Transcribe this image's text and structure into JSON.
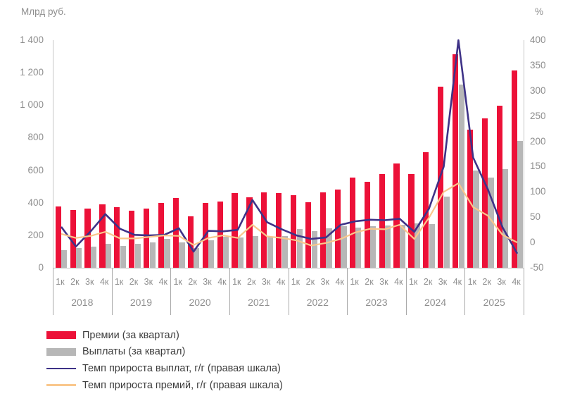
{
  "chart_data": {
    "type": "bar+line combo",
    "title": "",
    "years": [
      "2018",
      "2019",
      "2020",
      "2021",
      "2022",
      "2023",
      "2024",
      "2025"
    ],
    "quarter_labels": [
      "1к",
      "2к",
      "3к",
      "4к"
    ],
    "left_axis": {
      "label": "Млрд руб.",
      "min": 0,
      "max": 1400,
      "step": 200,
      "tick_labels": [
        "0",
        "200",
        "400",
        "600",
        "800",
        "1 000",
        "1 200",
        "1 400"
      ]
    },
    "right_axis": {
      "label": "%",
      "min": -50,
      "max": 400,
      "step": 50,
      "tick_labels": [
        "-50",
        "0",
        "50",
        "100",
        "150",
        "200",
        "250",
        "300",
        "350",
        "400"
      ]
    },
    "series": [
      {
        "name": "Премии (за квартал)",
        "type": "bar",
        "axis": "left",
        "color": "#ec1138",
        "values": [
          375,
          356,
          365,
          390,
          371,
          353,
          365,
          398,
          430,
          315,
          398,
          408,
          458,
          435,
          463,
          458,
          447,
          405,
          462,
          483,
          553,
          529,
          577,
          640,
          578,
          710,
          1112,
          1315,
          848,
          917,
          995,
          1213
        ]
      },
      {
        "name": "Выплаты (за квартал)",
        "type": "bar",
        "axis": "left",
        "color": "#b7b7b7",
        "values": [
          107,
          121,
          128,
          149,
          134,
          149,
          158,
          178,
          156,
          120,
          168,
          192,
          185,
          195,
          190,
          195,
          240,
          226,
          242,
          256,
          246,
          255,
          260,
          266,
          272,
          268,
          436,
          1125,
          600,
          556,
          607,
          780
        ]
      },
      {
        "name": "Темп прироста выплат, г/г (правая шкала)",
        "type": "line",
        "axis": "right",
        "color": "#3e3287",
        "width": 2.6,
        "values": [
          31,
          -8,
          22,
          56,
          27,
          15,
          14,
          15,
          28,
          -18,
          23,
          22,
          25,
          84,
          40,
          26,
          14,
          7,
          10,
          35,
          42,
          45,
          44,
          47,
          21,
          67,
          150,
          400,
          168,
          105,
          30,
          -22
        ]
      },
      {
        "name": "Темп прироста премий, г/г (правая шкала)",
        "type": "line",
        "axis": "right",
        "color": "#f9c78c",
        "width": 2.2,
        "values": [
          17,
          9,
          13,
          21,
          8,
          8,
          11,
          14,
          13,
          -5,
          9,
          14,
          9,
          35,
          12,
          9,
          4,
          -6,
          -1,
          7,
          20,
          27,
          26,
          35,
          7,
          49,
          100,
          117,
          70,
          53,
          15,
          0
        ]
      }
    ],
    "legend_position": "bottom-left",
    "grid": false
  },
  "legend": {
    "items": [
      {
        "label": "Премии (за квартал)",
        "swatch": "bar",
        "color": "#ec1138"
      },
      {
        "label": "Выплаты (за квартал)",
        "swatch": "bar",
        "color": "#b7b7b7"
      },
      {
        "label": "Темп прироста выплат, г/г (правая шкала)",
        "swatch": "line",
        "color": "#3e3287"
      },
      {
        "label": "Темп прироста премий, г/г (правая шкала)",
        "swatch": "line",
        "color": "#f9c78c"
      }
    ]
  }
}
